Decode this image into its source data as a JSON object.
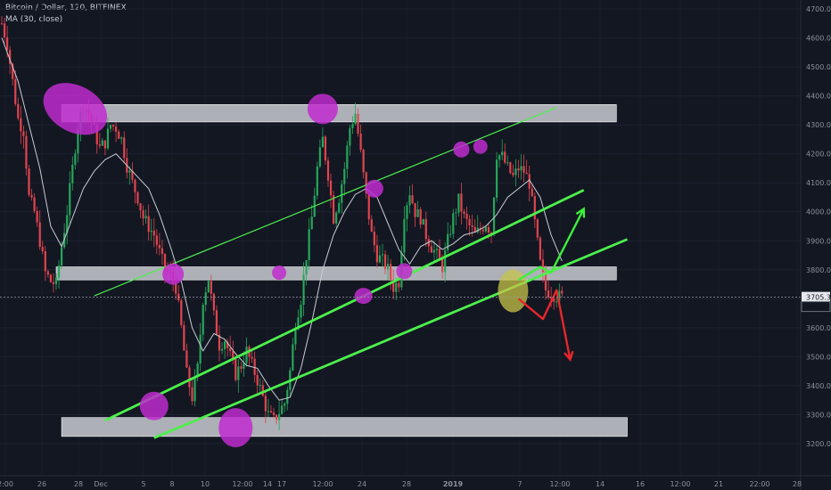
{
  "header": {
    "symbol": "Bitcoin / Dollar, 120, BITFINEX",
    "indicator": "MA (30, close)"
  },
  "price_tag": {
    "price": "3705.3",
    "countdown": "49:38"
  },
  "colors": {
    "background": "#131722",
    "up_candle": "#26a65b",
    "down_candle": "#e0454f",
    "ma_line": "#c9ccd3",
    "channel": "#4cf04c",
    "zone_fill": "#d9dbe0",
    "highlight": "#c02ccf",
    "current_highlight": "#c8c44a",
    "bull_arrow": "#3df03d",
    "bear_arrow": "#e8262a"
  },
  "chart_data": {
    "type": "candlestick",
    "y_ticks": [
      "4700.0",
      "4600.0",
      "4500.0",
      "4400.0",
      "4300.0",
      "4200.0",
      "4100.0",
      "4000.0",
      "3900.0",
      "3800.0",
      "3700.0",
      "3600.0",
      "3500.0",
      "3400.0",
      "3300.0",
      "3200.0"
    ],
    "x_ticks": [
      "2:00",
      "26",
      "28",
      "Dec",
      "5",
      "8",
      "10",
      "12:00",
      "14",
      "17",
      "12:00",
      "24",
      "28",
      "2019",
      "7",
      "12:00",
      "14",
      "16",
      "12:00",
      "21",
      "22:00",
      "28"
    ],
    "ylim": [
      3175,
      4735
    ],
    "close_path": [
      [
        0,
        4650
      ],
      [
        2,
        4580
      ],
      [
        4,
        4450
      ],
      [
        6,
        4320
      ],
      [
        8,
        4280
      ],
      [
        10,
        4050
      ],
      [
        12,
        4000
      ],
      [
        14,
        3900
      ],
      [
        16,
        3790
      ],
      [
        18,
        3760
      ],
      [
        20,
        3750
      ],
      [
        22,
        3880
      ],
      [
        24,
        4000
      ],
      [
        26,
        4150
      ],
      [
        28,
        4300
      ],
      [
        30,
        4370
      ],
      [
        32,
        4340
      ],
      [
        34,
        4280
      ],
      [
        36,
        4220
      ],
      [
        38,
        4240
      ],
      [
        40,
        4300
      ],
      [
        42,
        4290
      ],
      [
        44,
        4250
      ],
      [
        46,
        4160
      ],
      [
        48,
        4100
      ],
      [
        50,
        4050
      ],
      [
        52,
        3980
      ],
      [
        54,
        3950
      ],
      [
        56,
        3920
      ],
      [
        58,
        3860
      ],
      [
        60,
        3800
      ],
      [
        62,
        3780
      ],
      [
        64,
        3740
      ],
      [
        66,
        3600
      ],
      [
        68,
        3440
      ],
      [
        70,
        3360
      ],
      [
        72,
        3460
      ],
      [
        74,
        3700
      ],
      [
        76,
        3770
      ],
      [
        78,
        3640
      ],
      [
        80,
        3540
      ],
      [
        82,
        3560
      ],
      [
        84,
        3500
      ],
      [
        86,
        3440
      ],
      [
        88,
        3470
      ],
      [
        90,
        3520
      ],
      [
        92,
        3470
      ],
      [
        94,
        3420
      ],
      [
        96,
        3360
      ],
      [
        98,
        3300
      ],
      [
        100,
        3280
      ],
      [
        102,
        3310
      ],
      [
        104,
        3340
      ],
      [
        106,
        3450
      ],
      [
        108,
        3620
      ],
      [
        110,
        3700
      ],
      [
        112,
        3850
      ],
      [
        114,
        3980
      ],
      [
        116,
        4150
      ],
      [
        118,
        4250
      ],
      [
        120,
        4130
      ],
      [
        122,
        3980
      ],
      [
        124,
        4050
      ],
      [
        126,
        4150
      ],
      [
        128,
        4290
      ],
      [
        130,
        4340
      ],
      [
        132,
        4200
      ],
      [
        134,
        4050
      ],
      [
        136,
        3920
      ],
      [
        138,
        3850
      ],
      [
        140,
        3830
      ],
      [
        142,
        3800
      ],
      [
        144,
        3740
      ],
      [
        146,
        3760
      ],
      [
        148,
        4000
      ],
      [
        150,
        4070
      ],
      [
        152,
        4000
      ],
      [
        154,
        3980
      ],
      [
        156,
        3920
      ],
      [
        158,
        3880
      ],
      [
        160,
        3850
      ],
      [
        162,
        3810
      ],
      [
        164,
        3900
      ],
      [
        166,
        3980
      ],
      [
        168,
        4040
      ],
      [
        170,
        3980
      ],
      [
        172,
        3950
      ],
      [
        174,
        3920
      ],
      [
        176,
        3940
      ],
      [
        178,
        3960
      ],
      [
        180,
        3930
      ],
      [
        182,
        4200
      ],
      [
        184,
        4190
      ],
      [
        186,
        4150
      ],
      [
        188,
        4120
      ],
      [
        190,
        4150
      ],
      [
        192,
        4140
      ],
      [
        194,
        4100
      ],
      [
        196,
        3960
      ],
      [
        198,
        3820
      ],
      [
        200,
        3730
      ],
      [
        202,
        3720
      ],
      [
        204,
        3710
      ],
      [
        206,
        3705
      ]
    ],
    "ma_path": [
      [
        0,
        4600
      ],
      [
        6,
        4450
      ],
      [
        10,
        4300
      ],
      [
        14,
        4150
      ],
      [
        18,
        3950
      ],
      [
        22,
        3880
      ],
      [
        26,
        3980
      ],
      [
        30,
        4080
      ],
      [
        34,
        4140
      ],
      [
        38,
        4180
      ],
      [
        42,
        4200
      ],
      [
        46,
        4160
      ],
      [
        50,
        4120
      ],
      [
        54,
        4080
      ],
      [
        58,
        3990
      ],
      [
        62,
        3880
      ],
      [
        66,
        3760
      ],
      [
        70,
        3600
      ],
      [
        74,
        3520
      ],
      [
        78,
        3580
      ],
      [
        82,
        3560
      ],
      [
        86,
        3510
      ],
      [
        90,
        3470
      ],
      [
        94,
        3460
      ],
      [
        98,
        3400
      ],
      [
        102,
        3350
      ],
      [
        106,
        3360
      ],
      [
        110,
        3460
      ],
      [
        114,
        3620
      ],
      [
        118,
        3800
      ],
      [
        122,
        3920
      ],
      [
        126,
        4000
      ],
      [
        130,
        4060
      ],
      [
        134,
        4080
      ],
      [
        138,
        4050
      ],
      [
        142,
        3960
      ],
      [
        146,
        3870
      ],
      [
        150,
        3820
      ],
      [
        154,
        3880
      ],
      [
        158,
        3900
      ],
      [
        162,
        3870
      ],
      [
        166,
        3890
      ],
      [
        170,
        3920
      ],
      [
        174,
        3930
      ],
      [
        178,
        3950
      ],
      [
        182,
        3990
      ],
      [
        186,
        4050
      ],
      [
        190,
        4080
      ],
      [
        194,
        4110
      ],
      [
        198,
        4050
      ],
      [
        202,
        3920
      ],
      [
        206,
        3830
      ]
    ],
    "zones": [
      {
        "from": 4310,
        "to": 4370,
        "x0": 22,
        "x1": 226
      },
      {
        "from": 3765,
        "to": 3810,
        "x0": 20,
        "x1": 226
      },
      {
        "from": 3225,
        "to": 3290,
        "x0": 22,
        "x1": 230
      }
    ],
    "channel_lines": [
      {
        "x0": 34,
        "y0": 3710,
        "x1": 204,
        "y1": 4360,
        "width": 1.2
      },
      {
        "x0": 38,
        "y0": 3280,
        "x1": 214,
        "y1": 4075,
        "width": 2.8
      },
      {
        "x0": 56,
        "y0": 3220,
        "x1": 230,
        "y1": 3905,
        "width": 2.8
      }
    ],
    "highlights": [
      {
        "x": 27,
        "price": 4355,
        "rx": 38,
        "ry": 26,
        "rot": 28
      },
      {
        "x": 118,
        "price": 4355,
        "rx": 17,
        "ry": 17,
        "rot": 0
      },
      {
        "x": 63,
        "price": 3785,
        "rx": 12,
        "ry": 12,
        "rot": 0
      },
      {
        "x": 56,
        "price": 3330,
        "rx": 16,
        "ry": 16,
        "rot": 0
      },
      {
        "x": 86,
        "price": 3255,
        "rx": 19,
        "ry": 22,
        "rot": 0
      },
      {
        "x": 102,
        "price": 3790,
        "rx": 8,
        "ry": 8,
        "rot": 0
      },
      {
        "x": 137,
        "price": 4080,
        "rx": 10,
        "ry": 10,
        "rot": 0
      },
      {
        "x": 133,
        "price": 3710,
        "rx": 10,
        "ry": 9,
        "rot": 0
      },
      {
        "x": 148,
        "price": 3795,
        "rx": 9,
        "ry": 9,
        "rot": 0
      },
      {
        "x": 169,
        "price": 4215,
        "rx": 9,
        "ry": 9,
        "rot": 0
      },
      {
        "x": 176,
        "price": 4225,
        "rx": 8,
        "ry": 8,
        "rot": 0
      }
    ],
    "current_highlight": {
      "x": 188,
      "price": 3727,
      "rx": 17,
      "ry": 24
    },
    "bull_arrow": [
      [
        190,
        3765
      ],
      [
        198,
        3810
      ],
      [
        202,
        3790
      ],
      [
        214,
        4010
      ]
    ],
    "bear_arrow": [
      [
        190,
        3700
      ],
      [
        199,
        3630
      ],
      [
        204,
        3730
      ],
      [
        209,
        3490
      ]
    ]
  }
}
